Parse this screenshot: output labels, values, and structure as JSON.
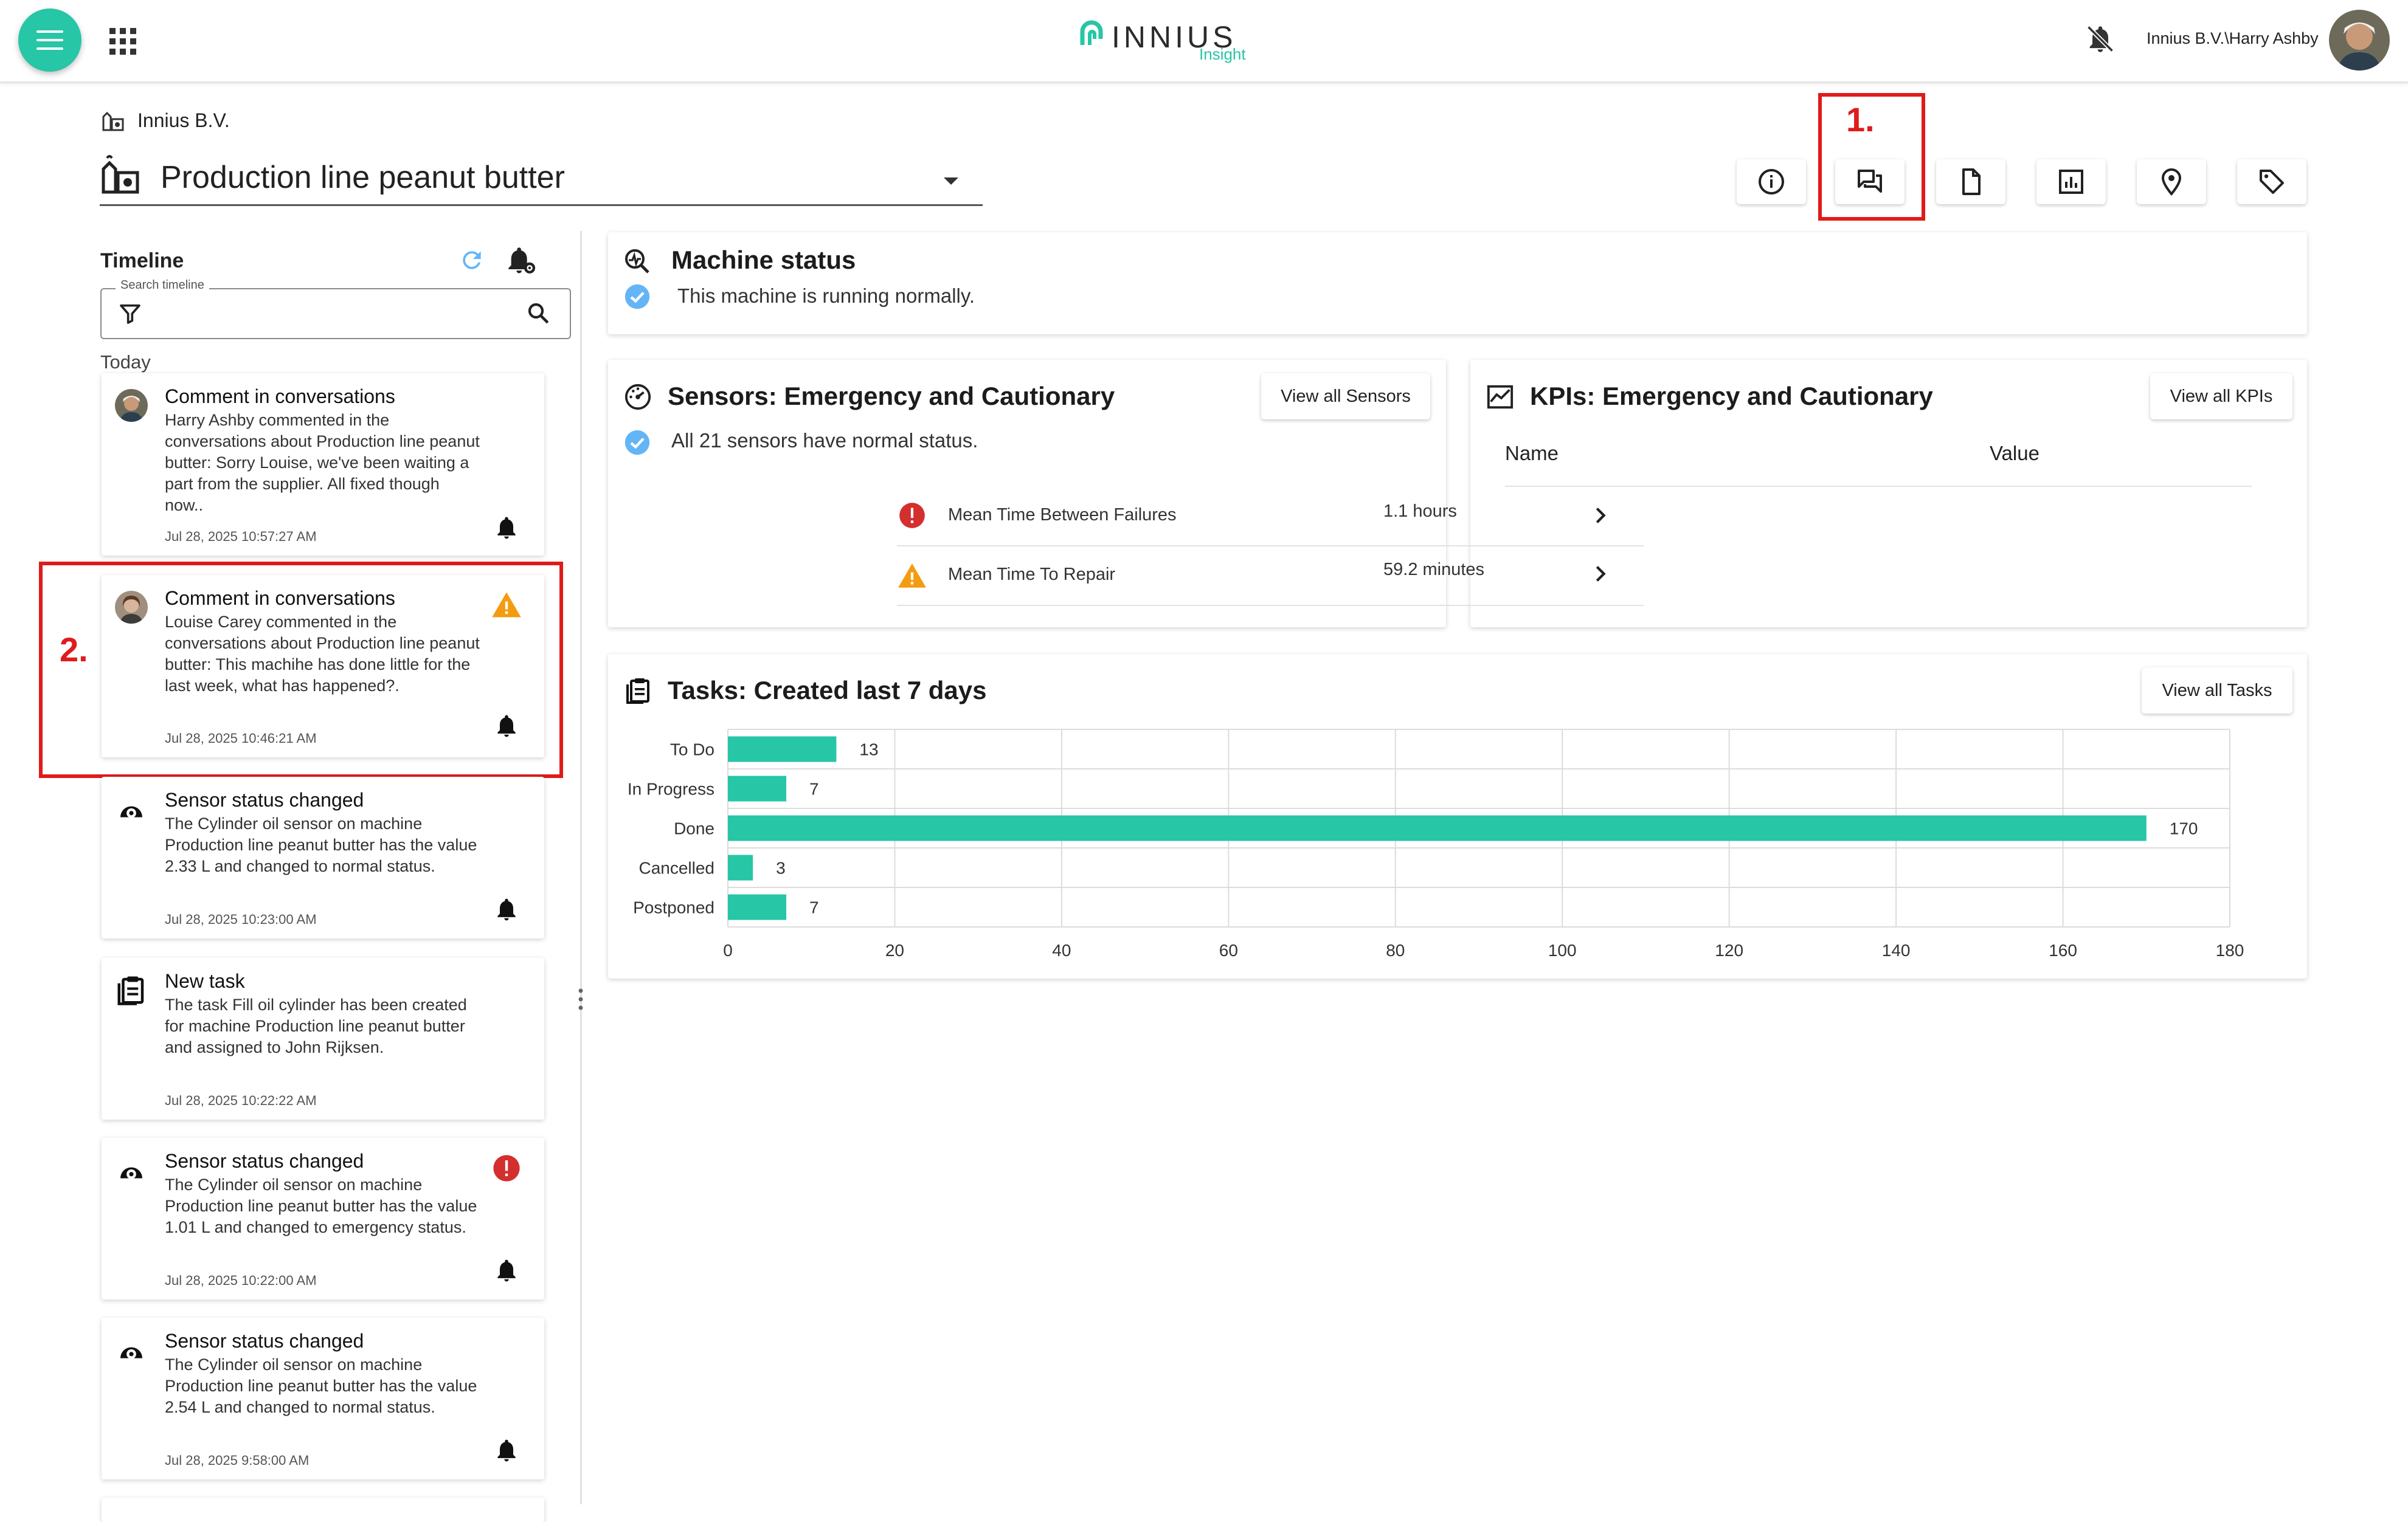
{
  "app": {
    "logo_text": "INNIUS",
    "logo_sub": "Insight",
    "user_name": "Innius B.V.\\Harry Ashby"
  },
  "header": {
    "org_name": "Innius B.V.",
    "machine_name": "Production line peanut butter"
  },
  "annotations": {
    "label_1": "1.",
    "label_2": "2."
  },
  "toolbar": {
    "buttons": [
      "info-icon",
      "conversations-icon",
      "document-icon",
      "report-icon",
      "location-icon",
      "tag-icon"
    ]
  },
  "timeline": {
    "title": "Timeline",
    "search_label": "Search timeline",
    "today": "Today",
    "items": [
      {
        "title": "Comment in conversations",
        "body": "Harry Ashby commented in the conversations about Production line peanut butter: Sorry Louise, we've been waiting a part from the supplier. All fixed though now..",
        "date": "Jul 28, 2025 10:57:27 AM"
      },
      {
        "title": "Comment in conversations",
        "body": "Louise Carey commented in the conversations about Production line peanut butter: This machihe has done little for the last week, what has happened?.",
        "date": "Jul 28, 2025 10:46:21 AM"
      },
      {
        "title": "Sensor status changed",
        "body": "The Cylinder oil sensor on machine Production line peanut butter has the value 2.33 L and changed to normal status.",
        "date": "Jul 28, 2025 10:23:00 AM"
      },
      {
        "title": "New task",
        "body": "The task Fill oil cylinder has been created for machine Production line peanut butter and assigned to John Rijksen.",
        "date": "Jul 28, 2025 10:22:22 AM"
      },
      {
        "title": "Sensor status changed",
        "body": "The Cylinder oil sensor on machine Production line peanut butter has the value 1.01 L and changed to emergency status.",
        "date": "Jul 28, 2025 10:22:00 AM"
      },
      {
        "title": "Sensor status changed",
        "body": "The Cylinder oil sensor on machine Production line peanut butter has the value 2.54 L and changed to normal status.",
        "date": "Jul 28, 2025 9:58:00 AM"
      }
    ]
  },
  "machine_status": {
    "title": "Machine status",
    "text": "This machine is running normally."
  },
  "sensors": {
    "title": "Sensors: Emergency and Cautionary",
    "button": "View all Sensors",
    "text": "All 21 sensors have normal status."
  },
  "kpis": {
    "title": "KPIs: Emergency and Cautionary",
    "button": "View all KPIs",
    "col_name": "Name",
    "col_value": "Value",
    "rows": [
      {
        "name": "Mean Time Between Failures",
        "value": "1.1 hours",
        "status": "emergency"
      },
      {
        "name": "Mean Time To Repair",
        "value": "59.2 minutes",
        "status": "cautionary"
      }
    ]
  },
  "tasks": {
    "title": "Tasks: Created last 7 days",
    "button": "View all Tasks"
  },
  "colors": {
    "accent": "#26c6a6",
    "emergency": "#d32f2f",
    "cautionary": "#f39c12",
    "check": "#64b5f6",
    "highlight": "#e01b1b"
  },
  "chart_data": {
    "type": "bar",
    "orientation": "horizontal",
    "categories": [
      "To Do",
      "In Progress",
      "Done",
      "Cancelled",
      "Postponed"
    ],
    "values": [
      13,
      7,
      170,
      3,
      7
    ],
    "xlim": [
      0,
      180
    ],
    "xticks": [
      0,
      20,
      40,
      60,
      80,
      100,
      120,
      140,
      160,
      180
    ],
    "grid": true,
    "color": "#26c6a6"
  }
}
